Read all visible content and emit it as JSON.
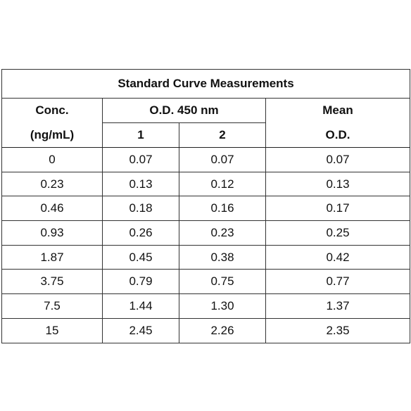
{
  "table": {
    "title": "Standard Curve Measurements",
    "header": {
      "conc": [
        "Conc.",
        "(ng/mL)"
      ],
      "od": "O.D. 450 nm",
      "replicates": [
        "1",
        "2"
      ],
      "mean": [
        "Mean",
        "O.D."
      ]
    },
    "rows": [
      [
        "0",
        "0.07",
        "0.07",
        "0.07"
      ],
      [
        "0.23",
        "0.13",
        "0.12",
        "0.13"
      ],
      [
        "0.46",
        "0.18",
        "0.16",
        "0.17"
      ],
      [
        "0.93",
        "0.26",
        "0.23",
        "0.25"
      ],
      [
        "1.87",
        "0.45",
        "0.38",
        "0.42"
      ],
      [
        "3.75",
        "0.79",
        "0.75",
        "0.77"
      ],
      [
        "7.5",
        "1.44",
        "1.30",
        "1.37"
      ],
      [
        "15",
        "2.45",
        "2.26",
        "2.35"
      ]
    ]
  }
}
